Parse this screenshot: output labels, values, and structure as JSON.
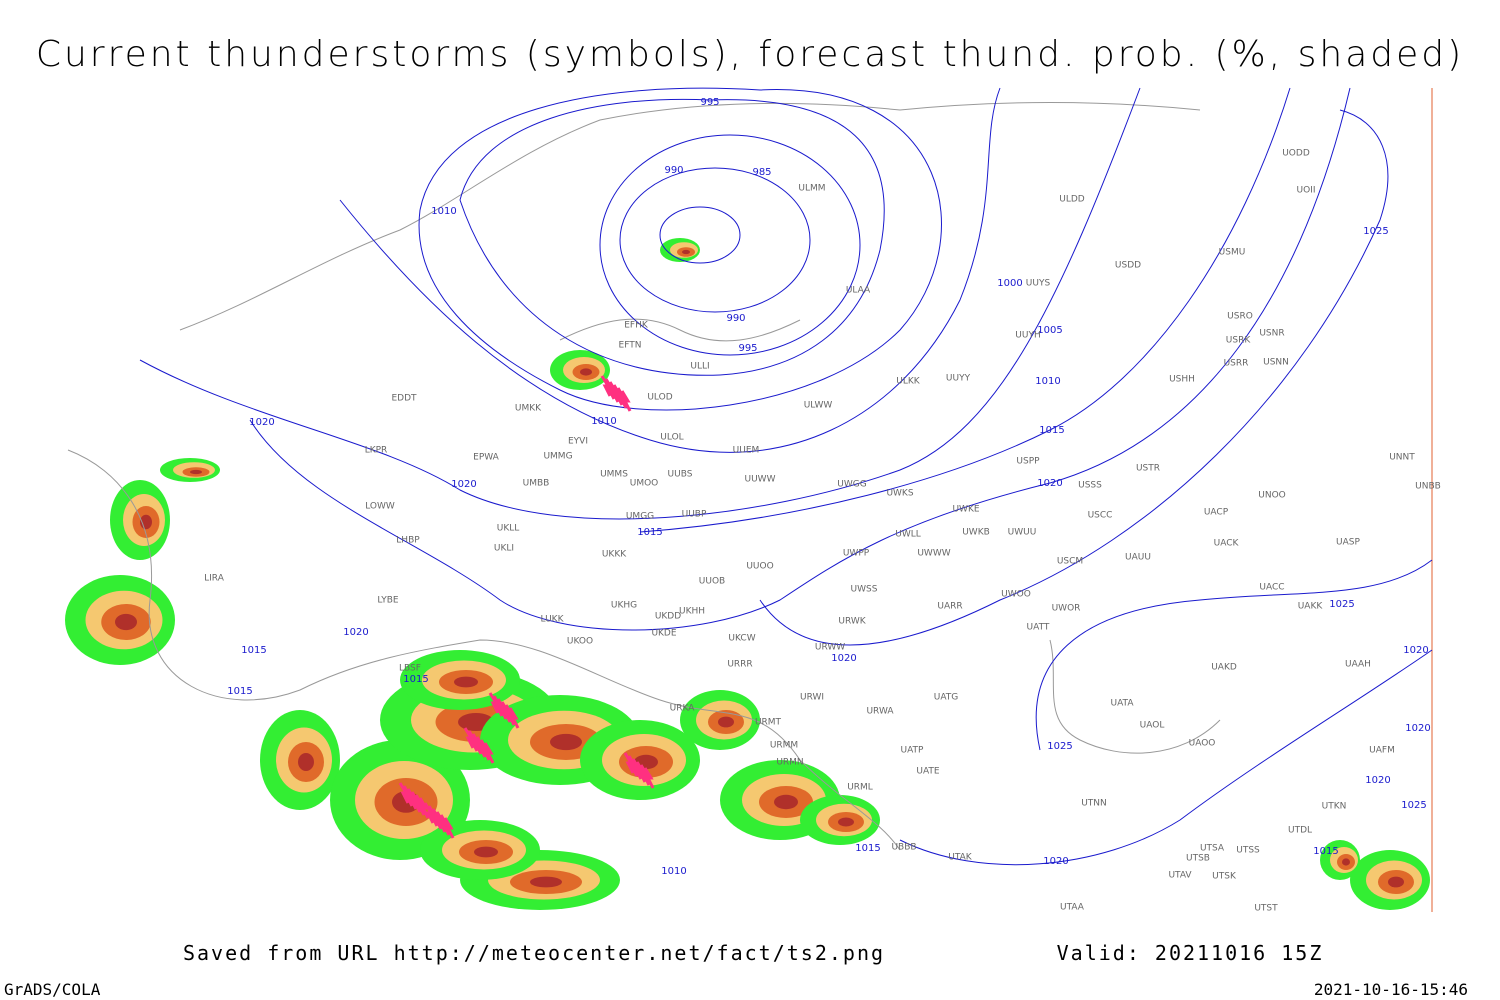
{
  "title": "Current thunderstorms (symbols), forecast thund. prob. (%, shaded)",
  "source": "Saved from URL http://meteocenter.net/fact/ts2.png",
  "valid": "Valid: 20211016 15Z",
  "software": "GrADS/COLA",
  "timestamp": "2021-10-16-15:46",
  "isobars": [
    995,
    990,
    985,
    1010,
    990,
    995,
    1000,
    1005,
    1010,
    1015,
    1020,
    1025,
    1010,
    1020,
    1020,
    1015,
    1020,
    1015,
    1015,
    1015,
    1025,
    1020,
    1020,
    1025,
    1020,
    1020,
    1025,
    1015,
    1015,
    1020,
    1010
  ],
  "stations": [
    "ULMM",
    "ULDD",
    "USDD",
    "USMU",
    "ULAA",
    "UUYS",
    "EFHK",
    "EFTN",
    "ULLI",
    "ULOD",
    "UUYH",
    "USRO",
    "USRK",
    "USNR",
    "USRR",
    "USNN",
    "ULKK",
    "UUYY",
    "USHH",
    "EDDT",
    "UMKK",
    "ULWW",
    "EYVI",
    "ULOL",
    "UUEM",
    "EPWA",
    "UMMG",
    "LKPR",
    "USPP",
    "USTR",
    "UNNT",
    "UMMS",
    "UMOO",
    "UUBS",
    "UUWW",
    "UWGG",
    "UWKS",
    "USSS",
    "UNOO",
    "UNBB",
    "UMBB",
    "LOWW",
    "UKLL",
    "UMGG",
    "UUBP",
    "UWKE",
    "USCC",
    "UACP",
    "UWLL",
    "UWKB",
    "UWUU",
    "UKLI",
    "LHBP",
    "UKKK",
    "UWPP",
    "UWWW",
    "UACK",
    "UASP",
    "USCM",
    "UAUU",
    "UUOO",
    "UUOB",
    "LIRA",
    "UWSS",
    "UACC",
    "LYBE",
    "UKHH",
    "UKHG",
    "UKDD",
    "UARR",
    "UWOO",
    "UWOR",
    "UAKK",
    "LUKK",
    "UKDE",
    "URWK",
    "UATT",
    "UKOO",
    "UKCW",
    "URWW",
    "LBSF",
    "URRR",
    "UAKD",
    "UAAH",
    "UATG",
    "URWI",
    "UATA",
    "UAOL",
    "URKA",
    "URMT",
    "URWA",
    "UAOO",
    "URMM",
    "UATP",
    "UATE",
    "URMN",
    "UAFM",
    "URML",
    "UTNN",
    "UTKN",
    "UTDL",
    "UTSA",
    "UTSS",
    "UTSB",
    "UBBB",
    "UTAK",
    "UTAV",
    "UTSK",
    "UTST",
    "UTAA",
    "UODD",
    "UOII"
  ]
}
